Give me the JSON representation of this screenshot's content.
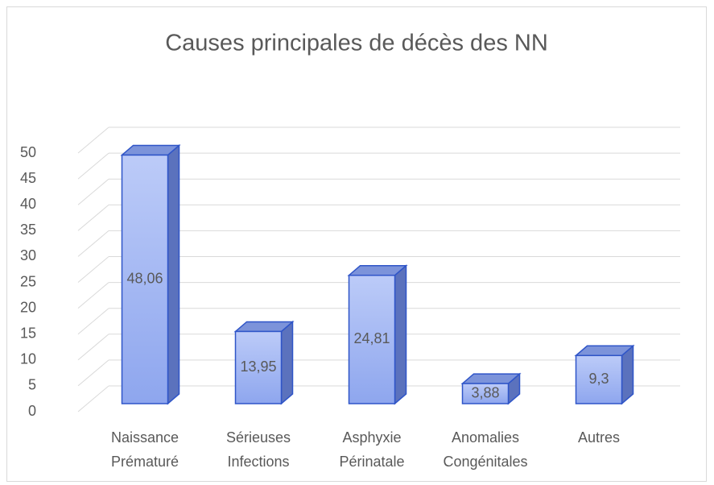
{
  "chart_data": {
    "type": "bar3d",
    "title": "Causes principales de décès des NN",
    "categories": [
      "Naissance\nPrématuré",
      "Sérieuses\nInfections",
      "Asphyxie\nPérinatale",
      "Anomalies\nCongénitales",
      "Autres"
    ],
    "values": [
      48.06,
      13.95,
      24.81,
      3.88,
      9.3
    ],
    "value_labels": [
      "48,06",
      "13,95",
      "24,81",
      "3,88",
      "9,3"
    ],
    "color": "#a9bdf5",
    "ylim": [
      0,
      50
    ],
    "yticks": [
      0,
      5,
      10,
      15,
      20,
      25,
      30,
      35,
      40,
      45,
      50
    ],
    "grid": true
  }
}
